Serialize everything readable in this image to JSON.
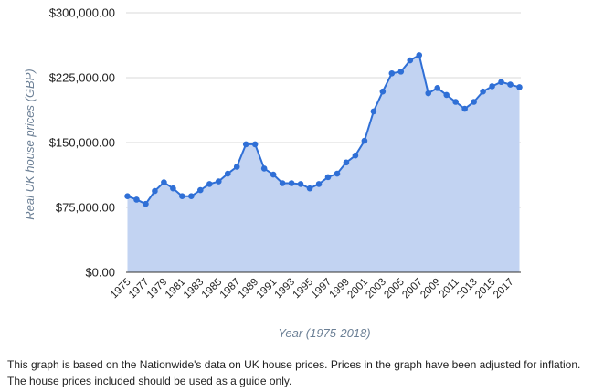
{
  "chart_data": {
    "type": "area",
    "xlabel": "Year (1975-2018)",
    "ylabel": "Real UK house prices (GBP)",
    "ylim": [
      0,
      300000
    ],
    "y_ticks": [
      "$0.00",
      "$75,000.00",
      "$150,000.00",
      "$225,000.00",
      "$300,000.00"
    ],
    "y_tick_values": [
      0,
      75000,
      150000,
      225000,
      300000
    ],
    "x_tick_labels": [
      "1975",
      "1977",
      "1979",
      "1981",
      "1983",
      "1985",
      "1987",
      "1989",
      "1991",
      "1993",
      "1995",
      "1997",
      "1999",
      "2001",
      "2003",
      "2005",
      "2007",
      "2009",
      "2011",
      "2013",
      "2015",
      "2017"
    ],
    "grid": true,
    "legend": "none",
    "colors": {
      "line": "#2f6fd6",
      "fill": "#c2d3f2",
      "grid": "#d8d8d8"
    },
    "series": [
      {
        "x": [
          1975,
          1976,
          1977,
          1978,
          1979,
          1980,
          1981,
          1982,
          1983,
          1984,
          1985,
          1986,
          1987,
          1988,
          1989,
          1990,
          1991,
          1992,
          1993,
          1994,
          1995,
          1996,
          1997,
          1998,
          1999,
          2000,
          2001,
          2002,
          2003,
          2004,
          2005,
          2006,
          2007,
          2008,
          2009,
          2010,
          2011,
          2012,
          2013,
          2014,
          2015,
          2016,
          2017,
          2018
        ],
        "values": [
          88000,
          84000,
          79000,
          94000,
          104000,
          97000,
          88000,
          88000,
          95000,
          102000,
          105000,
          114000,
          122000,
          148000,
          148000,
          120000,
          113000,
          103000,
          103000,
          102000,
          97000,
          102000,
          110000,
          114000,
          127000,
          135000,
          152000,
          186000,
          209000,
          230000,
          232000,
          245000,
          251000,
          207000,
          213000,
          205000,
          197000,
          189000,
          197000,
          209000,
          215000,
          220000,
          217000,
          214000
        ]
      }
    ]
  },
  "caption": "This graph is based on the Nationwide's data on UK house prices. Prices in the graph have been adjusted for inflation. The house prices included should be used as a guide only."
}
